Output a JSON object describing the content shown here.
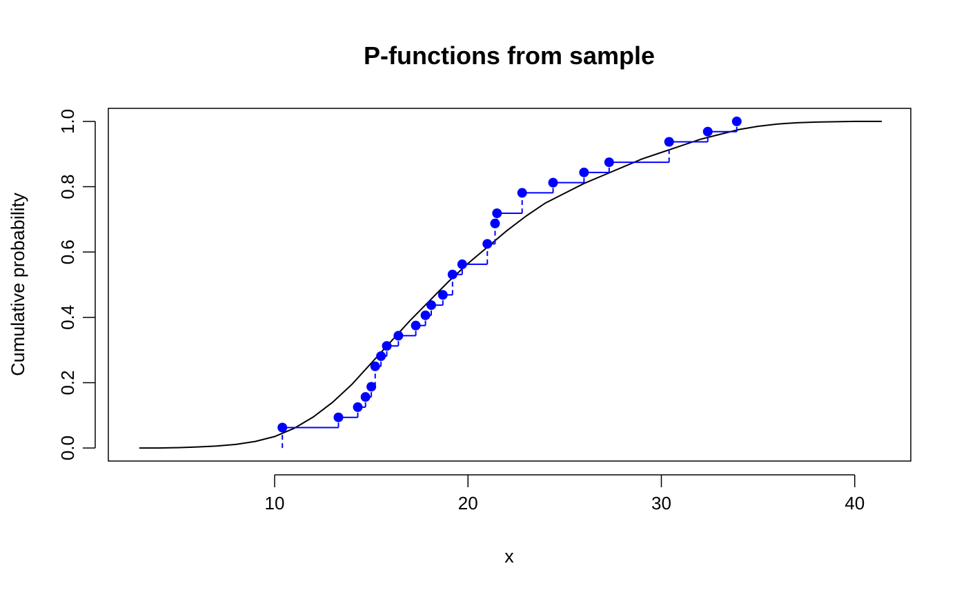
{
  "chart_data": {
    "type": "line",
    "title": "P-functions from sample",
    "xlabel": "x",
    "ylabel": "Cumulative probability",
    "xlim": [
      1.4,
      42.9
    ],
    "ylim": [
      -0.04,
      1.04
    ],
    "x_ticks": [
      "10",
      "20",
      "30",
      "40"
    ],
    "x_tick_values": [
      10,
      20,
      30,
      40
    ],
    "y_ticks": [
      "0.0",
      "0.2",
      "0.4",
      "0.6",
      "0.8",
      "1.0"
    ],
    "y_tick_values": [
      0,
      0.2,
      0.4,
      0.6,
      0.8,
      1.0
    ],
    "grid": false,
    "legend": "none",
    "colors": {
      "theoretical": "#000000",
      "empirical": "#0000ff",
      "frame": "#000000"
    },
    "series": [
      {
        "style": "smooth-curve",
        "x": [
          3,
          4,
          5,
          6,
          7,
          8,
          9,
          10,
          11,
          12,
          13,
          14,
          15,
          16,
          17,
          18,
          19,
          20,
          21,
          22,
          23,
          24,
          25,
          26,
          27,
          28,
          29,
          30,
          31,
          32,
          33,
          34,
          35,
          36,
          37,
          38,
          39,
          40,
          41,
          41.4
        ],
        "y": [
          0.0,
          0.0,
          0.001,
          0.003,
          0.006,
          0.011,
          0.02,
          0.035,
          0.06,
          0.095,
          0.14,
          0.195,
          0.26,
          0.325,
          0.39,
          0.45,
          0.51,
          0.565,
          0.615,
          0.665,
          0.71,
          0.75,
          0.78,
          0.81,
          0.835,
          0.86,
          0.885,
          0.905,
          0.925,
          0.945,
          0.96,
          0.975,
          0.985,
          0.992,
          0.996,
          0.998,
          0.999,
          1.0,
          1.0,
          1.0
        ]
      },
      {
        "style": "step-with-points",
        "x": [
          10.4,
          13.3,
          14.3,
          14.7,
          15.0,
          15.2,
          15.5,
          15.8,
          16.4,
          17.3,
          17.8,
          18.1,
          18.7,
          19.2,
          19.7,
          21.0,
          21.4,
          21.5,
          22.8,
          24.4,
          26.0,
          27.3,
          30.4,
          32.4,
          33.9
        ],
        "y": [
          0.0625,
          0.09375,
          0.125,
          0.15625,
          0.1875,
          0.25,
          0.28125,
          0.3125,
          0.34375,
          0.375,
          0.40625,
          0.4375,
          0.46875,
          0.53125,
          0.5625,
          0.625,
          0.6875,
          0.71875,
          0.78125,
          0.8125,
          0.84375,
          0.875,
          0.9375,
          0.96875,
          1.0
        ]
      }
    ]
  }
}
